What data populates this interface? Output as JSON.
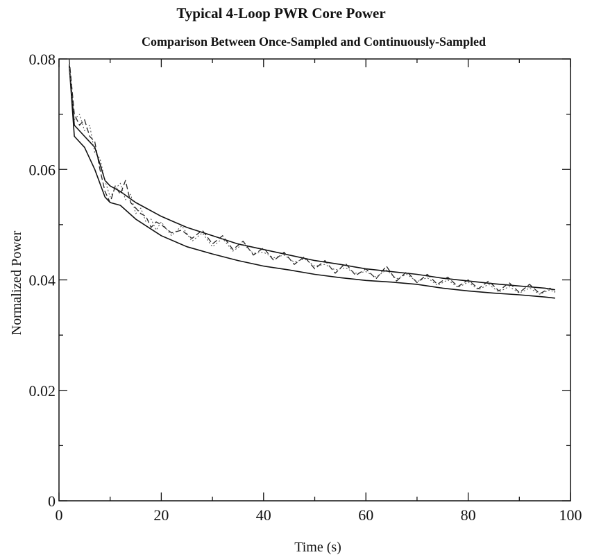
{
  "chart_data": {
    "type": "line",
    "title": "Typical 4-Loop PWR Core Power",
    "subtitle": "Comparison Between Once-Sampled and Continuously-Sampled",
    "xlabel": "Time (s)",
    "ylabel": "Normalized Power",
    "xlim": [
      0,
      100
    ],
    "ylim": [
      0,
      0.08
    ],
    "x_ticks": [
      0,
      20,
      40,
      60,
      80,
      100
    ],
    "x_tick_labels": [
      "0",
      "20",
      "40",
      "60",
      "80",
      "100"
    ],
    "y_ticks": [
      0,
      0.02,
      0.04,
      0.06,
      0.08
    ],
    "y_tick_labels": [
      "0",
      "0.02",
      "0.04",
      "0.06",
      "0.08"
    ],
    "grid": false,
    "legend": "none",
    "series": [
      {
        "style": "solid",
        "x": [
          2,
          3,
          5,
          7,
          9,
          10,
          12,
          15,
          20,
          25,
          30,
          35,
          40,
          45,
          50,
          55,
          60,
          65,
          70,
          75,
          80,
          85,
          90,
          95,
          97
        ],
        "values": [
          0.079,
          0.068,
          0.066,
          0.064,
          0.058,
          0.057,
          0.056,
          0.054,
          0.0515,
          0.0495,
          0.048,
          0.0465,
          0.0455,
          0.0445,
          0.0435,
          0.0428,
          0.042,
          0.0415,
          0.041,
          0.0403,
          0.0398,
          0.0393,
          0.0389,
          0.0385,
          0.0382
        ]
      },
      {
        "style": "solid",
        "x": [
          2,
          3,
          5,
          7,
          9,
          10,
          12,
          15,
          20,
          25,
          30,
          35,
          40,
          45,
          50,
          55,
          60,
          65,
          70,
          75,
          80,
          85,
          90,
          95,
          97
        ],
        "values": [
          0.079,
          0.066,
          0.064,
          0.06,
          0.055,
          0.054,
          0.0535,
          0.051,
          0.048,
          0.046,
          0.0447,
          0.0435,
          0.0425,
          0.0418,
          0.041,
          0.0404,
          0.0399,
          0.0396,
          0.0392,
          0.0385,
          0.038,
          0.0376,
          0.0373,
          0.0369,
          0.0367
        ]
      },
      {
        "style": "dashed",
        "x": [
          2,
          3,
          4,
          5,
          6,
          7,
          8,
          9,
          10,
          11,
          12,
          13,
          14,
          15,
          16,
          17,
          18,
          19,
          20,
          22,
          24,
          26,
          28,
          30,
          32,
          34,
          36,
          38,
          40,
          42,
          44,
          46,
          48,
          50,
          52,
          54,
          56,
          58,
          60,
          62,
          64,
          66,
          68,
          70,
          72,
          74,
          76,
          78,
          80,
          82,
          84,
          86,
          88,
          90,
          92,
          94,
          96,
          97
        ],
        "values": [
          0.08,
          0.07,
          0.068,
          0.069,
          0.066,
          0.065,
          0.06,
          0.056,
          0.054,
          0.057,
          0.0555,
          0.058,
          0.054,
          0.053,
          0.052,
          0.0515,
          0.0495,
          0.0505,
          0.05,
          0.0485,
          0.049,
          0.0475,
          0.049,
          0.0465,
          0.048,
          0.0455,
          0.047,
          0.0445,
          0.0458,
          0.0435,
          0.045,
          0.0428,
          0.0442,
          0.042,
          0.0435,
          0.0412,
          0.043,
          0.0408,
          0.042,
          0.0402,
          0.0425,
          0.0398,
          0.0415,
          0.0395,
          0.041,
          0.0392,
          0.0405,
          0.0388,
          0.04,
          0.0384,
          0.0398,
          0.038,
          0.0395,
          0.0377,
          0.0392,
          0.0375,
          0.0385,
          0.0378
        ]
      },
      {
        "style": "dotted",
        "x": [
          2,
          3,
          4,
          5,
          6,
          7,
          8,
          9,
          10,
          11,
          12,
          13,
          14,
          15,
          16,
          17,
          18,
          19,
          20,
          22,
          24,
          26,
          28,
          30,
          32,
          34,
          36,
          38,
          40,
          42,
          44,
          46,
          48,
          50,
          52,
          54,
          56,
          58,
          60,
          62,
          64,
          66,
          68,
          70,
          72,
          74,
          76,
          78,
          80,
          82,
          84,
          86,
          88,
          90,
          92,
          94,
          96,
          97
        ],
        "values": [
          0.079,
          0.069,
          0.07,
          0.067,
          0.068,
          0.063,
          0.062,
          0.058,
          0.055,
          0.0565,
          0.0575,
          0.0545,
          0.0555,
          0.052,
          0.053,
          0.0505,
          0.051,
          0.049,
          0.0505,
          0.048,
          0.0498,
          0.047,
          0.0485,
          0.046,
          0.0475,
          0.0452,
          0.0465,
          0.0448,
          0.045,
          0.044,
          0.0445,
          0.0432,
          0.0438,
          0.0425,
          0.0428,
          0.0418,
          0.0422,
          0.0412,
          0.0415,
          0.0405,
          0.0418,
          0.0402,
          0.041,
          0.0397,
          0.0404,
          0.039,
          0.04,
          0.0386,
          0.0396,
          0.0382,
          0.0392,
          0.0378,
          0.0388,
          0.0376,
          0.0385,
          0.0374,
          0.0382,
          0.0377
        ]
      }
    ]
  }
}
